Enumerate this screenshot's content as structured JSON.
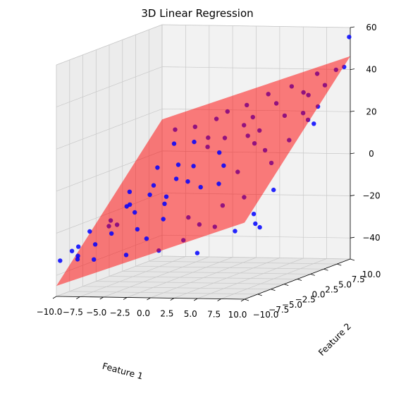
{
  "chart_data": {
    "type": "scatter",
    "projection": "3d",
    "title": "3D Linear Regression",
    "xlabel": "Feature 1",
    "ylabel": "Feature 2",
    "zlabel": "",
    "xlim": [
      -10,
      10
    ],
    "ylim": [
      -10,
      10
    ],
    "zlim": [
      -50,
      60
    ],
    "xticks": [
      "−10.0",
      "−7.5",
      "−5.0",
      "−2.5",
      "0.0",
      "2.5",
      "5.0",
      "7.5",
      "10.0"
    ],
    "yticks": [
      "−10.0",
      "−7.5",
      "−5.0",
      "−2.5",
      "0.0",
      "2.5",
      "5.0",
      "7.5",
      "10.0"
    ],
    "zticks": [
      "−40",
      "−20",
      "0",
      "20",
      "40",
      "60"
    ],
    "grid": true,
    "colors": {
      "points": "#0000ff",
      "plane": "#ff0000",
      "plane_alpha": 0.5
    },
    "plane": {
      "intercept": 0.7,
      "coef_x": 1.57,
      "coef_y": 3.0
    },
    "series": [
      {
        "marker": "o",
        "points": [
          [
            -9.6,
            -10,
            -33
          ],
          [
            -8.5,
            -8.6,
            -32
          ],
          [
            -8.2,
            -6.9,
            -22
          ],
          [
            -7,
            -8,
            -27
          ],
          [
            -6,
            -6.7,
            -23
          ],
          [
            -5.5,
            -4.7,
            -12
          ],
          [
            -4.2,
            -5.5,
            -14
          ],
          [
            -4,
            -3,
            -8
          ],
          [
            -7.2,
            -3.5,
            -22
          ],
          [
            -8.2,
            -9.2,
            -33
          ],
          [
            -9.3,
            -8.3,
            -30
          ],
          [
            -2.8,
            -7.5,
            -20
          ],
          [
            0.6,
            -9.5,
            -28
          ],
          [
            5.2,
            -10.4,
            -28
          ],
          [
            5.6,
            -7.8,
            -18
          ],
          [
            8.4,
            -5.4,
            -14
          ],
          [
            8.9,
            -6,
            -18
          ],
          [
            9.2,
            -5.7,
            -20
          ],
          [
            1.5,
            -5.5,
            -16
          ],
          [
            -0.6,
            -6.5,
            -16
          ],
          [
            -1.2,
            -5.2,
            -10
          ],
          [
            3.4,
            -6.8,
            -18
          ],
          [
            -1.8,
            -3.8,
            -8
          ],
          [
            1.4,
            -3,
            -4
          ],
          [
            3.5,
            -3.3,
            -2
          ],
          [
            5.2,
            -5.6,
            -10
          ],
          [
            6.3,
            -3.5,
            -8
          ],
          [
            7.8,
            -1,
            6
          ],
          [
            2.5,
            -0.6,
            4
          ],
          [
            -2.2,
            -1.2,
            -2
          ],
          [
            -5,
            -0.5,
            -6
          ],
          [
            -8,
            0.3,
            -10
          ],
          [
            -6,
            2,
            0
          ],
          [
            -3.5,
            1.5,
            2
          ],
          [
            -1.6,
            1,
            2
          ],
          [
            0.8,
            1.6,
            8
          ],
          [
            4.2,
            2.2,
            12
          ],
          [
            6,
            1,
            10
          ],
          [
            8,
            2,
            14
          ],
          [
            9.5,
            4,
            20
          ],
          [
            8.7,
            6.2,
            26
          ],
          [
            5.5,
            5.6,
            22
          ],
          [
            2.6,
            3.8,
            14
          ],
          [
            -0.3,
            4.6,
            12
          ],
          [
            -3.5,
            4.5,
            10
          ],
          [
            -6.2,
            5.5,
            8
          ],
          [
            -7.6,
            8.2,
            12
          ],
          [
            -5.2,
            7.7,
            14
          ],
          [
            -4,
            9.6,
            16
          ],
          [
            -2.6,
            9.2,
            20
          ],
          [
            -0.1,
            8.4,
            24
          ],
          [
            1.4,
            9.8,
            28
          ],
          [
            4,
            9.6,
            32
          ],
          [
            6.6,
            9.8,
            38
          ],
          [
            8.6,
            9.8,
            40
          ],
          [
            9.8,
            9.2,
            42
          ],
          [
            1.5,
            6.7,
            20
          ],
          [
            3.6,
            7.4,
            26
          ],
          [
            6.9,
            7.6,
            30
          ],
          [
            7.8,
            5,
            24
          ],
          [
            9,
            3.8,
            22
          ],
          [
            -9,
            -1.5,
            -22
          ],
          [
            -8.8,
            -2.2,
            -24
          ],
          [
            -2.7,
            -9.8,
            -30
          ],
          [
            -5.9,
            -10.2,
            -32
          ],
          [
            -1.6,
            -7.9,
            -24
          ],
          [
            2.6,
            -8.4,
            -24
          ],
          [
            7.7,
            -7.7,
            -20
          ],
          [
            -0.3,
            -2.4,
            -2
          ],
          [
            4.5,
            -1.5,
            2
          ],
          [
            9.6,
            -3.8,
            -4
          ],
          [
            -9.8,
            -6.2,
            -30
          ],
          [
            -3.2,
            6.6,
            10
          ],
          [
            0.5,
            6.8,
            16
          ],
          [
            3.5,
            4.4,
            16
          ],
          [
            5.7,
            8.8,
            30
          ],
          [
            8.2,
            8.4,
            34
          ],
          [
            -6.8,
            -1.8,
            -14
          ],
          [
            -1.9,
            4.2,
            8
          ],
          [
            9.6,
            10.5,
            55
          ]
        ]
      }
    ]
  }
}
